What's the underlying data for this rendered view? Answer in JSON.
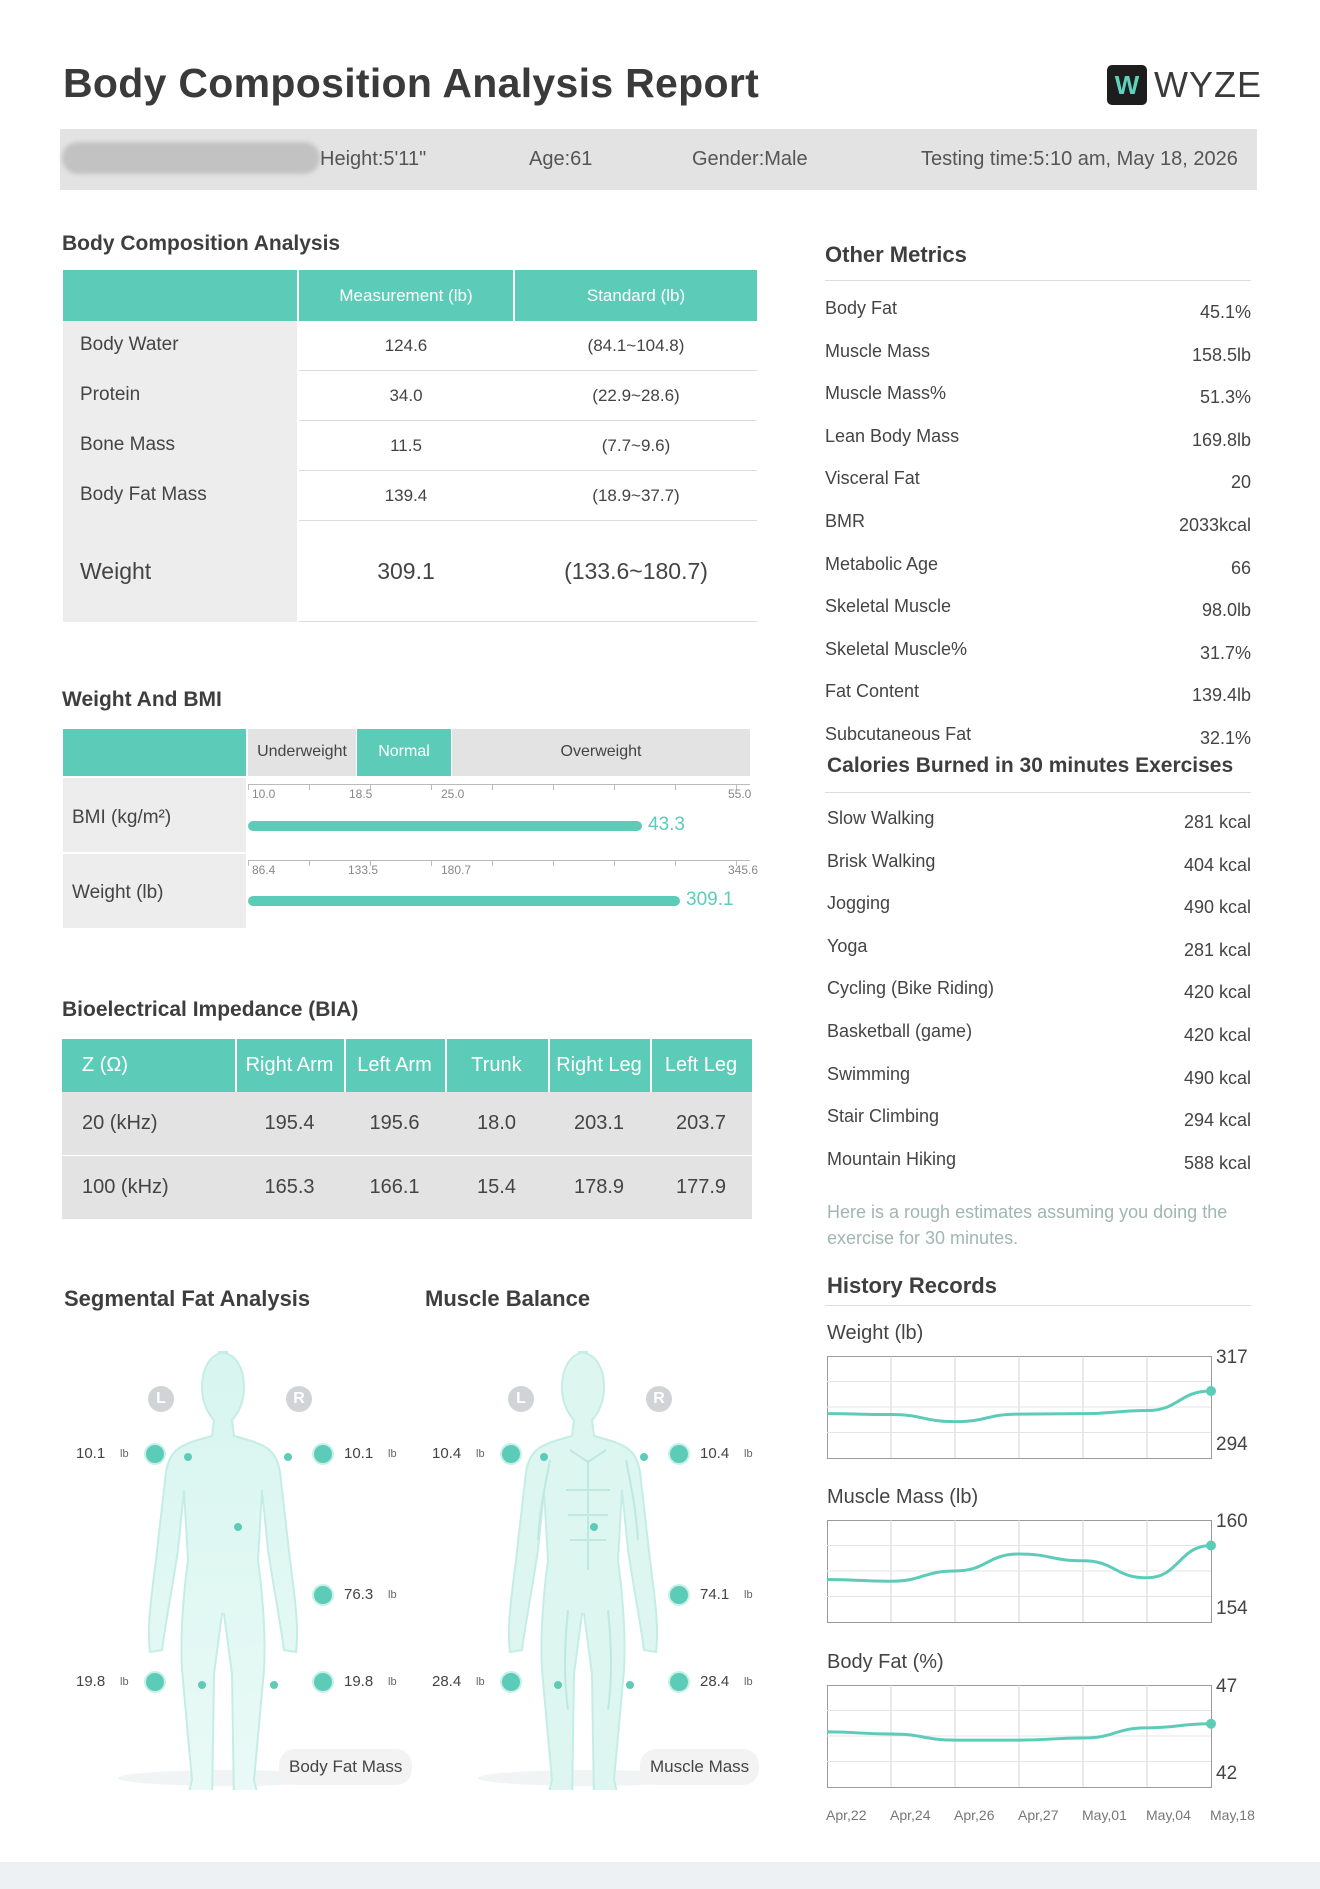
{
  "header": {
    "title": "Body Composition Analysis Report",
    "logo_text": "WYZE",
    "logo_mark": "W"
  },
  "info": {
    "height": "Height:5'11\"",
    "age": "Age:61",
    "gender": "Gender:Male",
    "testing_time": "Testing time:5:10 am, May 18, 2026"
  },
  "bca": {
    "title": "Body Composition Analysis",
    "col_measure": "Measurement (lb)",
    "col_standard": "Standard (lb)",
    "rows": [
      {
        "label": "Body Water",
        "value": "124.6",
        "standard": "(84.1~104.8)"
      },
      {
        "label": "Protein",
        "value": "34.0",
        "standard": "(22.9~28.6)"
      },
      {
        "label": "Bone Mass",
        "value": "11.5",
        "standard": "(7.7~9.6)"
      },
      {
        "label": "Body Fat Mass",
        "value": "139.4",
        "standard": "(18.9~37.7)"
      }
    ],
    "weight": {
      "label": "Weight",
      "value": "309.1",
      "standard": "(133.6~180.7)"
    }
  },
  "bmi": {
    "title": "Weight And BMI",
    "bands": [
      "Underweight",
      "Normal",
      "Overweight"
    ],
    "bmi_label": "BMI (kg/m²)",
    "bmi_ticks": [
      "10.0",
      "18.5",
      "25.0",
      "55.0"
    ],
    "bmi_value": "43.3",
    "bmi_fraction": 0.785,
    "weight_label": "Weight (lb)",
    "weight_ticks": [
      "86.4",
      "133.5",
      "180.7",
      "345.6"
    ],
    "weight_value": "309.1",
    "weight_fraction": 0.86
  },
  "bia": {
    "title": "Bioelectrical Impedance (BIA)",
    "headers": [
      "Z (Ω)",
      "Right Arm",
      "Left Arm",
      "Trunk",
      "Right Leg",
      "Left Leg"
    ],
    "rows": [
      [
        "20 (kHz)",
        "195.4",
        "195.6",
        "18.0",
        "203.1",
        "203.7"
      ],
      [
        "100 (kHz)",
        "165.3",
        "166.1",
        "15.4",
        "178.9",
        "177.9"
      ]
    ]
  },
  "segmental": {
    "title": "Segmental Fat Analysis",
    "left_arm": "10.1",
    "right_arm": "10.1",
    "trunk": "76.3",
    "left_leg": "19.8",
    "right_leg": "19.8",
    "unit": "lb",
    "l": "L",
    "r": "R",
    "caption": "Body Fat Mass"
  },
  "muscle": {
    "title": "Muscle Balance",
    "left_arm": "10.4",
    "right_arm": "10.4",
    "trunk": "74.1",
    "left_leg": "28.4",
    "right_leg": "28.4",
    "unit": "lb",
    "l": "L",
    "r": "R",
    "caption": "Muscle Mass"
  },
  "other": {
    "title": "Other Metrics",
    "rows": [
      {
        "label": "Body Fat",
        "value": "45.1%"
      },
      {
        "label": "Muscle Mass",
        "value": "158.5lb"
      },
      {
        "label": "Muscle Mass%",
        "value": "51.3%"
      },
      {
        "label": "Lean Body Mass",
        "value": "169.8lb"
      },
      {
        "label": "Visceral Fat",
        "value": "20"
      },
      {
        "label": "BMR",
        "value": "2033kcal"
      },
      {
        "label": "Metabolic Age",
        "value": "66"
      },
      {
        "label": "Skeletal Muscle",
        "value": "98.0lb"
      },
      {
        "label": "Skeletal Muscle%",
        "value": "31.7%"
      },
      {
        "label": "Fat Content",
        "value": "139.4lb"
      },
      {
        "label": "Subcutaneous Fat",
        "value": "32.1%"
      }
    ]
  },
  "calories": {
    "title": "Calories Burned in 30 minutes Exercises",
    "rows": [
      {
        "label": "Slow Walking",
        "value": "281 kcal"
      },
      {
        "label": "Brisk Walking",
        "value": "404 kcal"
      },
      {
        "label": "Jogging",
        "value": "490 kcal"
      },
      {
        "label": "Yoga",
        "value": "281 kcal"
      },
      {
        "label": "Cycling (Bike Riding)",
        "value": "420 kcal"
      },
      {
        "label": "Basketball (game)",
        "value": "420 kcal"
      },
      {
        "label": "Swimming",
        "value": "490 kcal"
      },
      {
        "label": "Stair Climbing",
        "value": "294 kcal"
      },
      {
        "label": "Mountain Hiking",
        "value": "588 kcal"
      }
    ],
    "note": "Here is a rough estimates assuming you doing the exercise for 30 minutes."
  },
  "history": {
    "title": "History Records",
    "x_labels": [
      "Apr,22",
      "Apr,24",
      "Apr,26",
      "Apr,27",
      "May,01",
      "May,04",
      "May,18"
    ]
  },
  "chart_data": [
    {
      "type": "line",
      "title": "Weight (lb)",
      "x": [
        "Apr,22",
        "Apr,24",
        "Apr,26",
        "Apr,27",
        "May,01",
        "May,04",
        "May,18"
      ],
      "y_ticks": [
        "317",
        "294"
      ],
      "ylim": [
        294,
        317
      ],
      "series": [
        {
          "values": [
            304.0,
            303.8,
            302.2,
            303.9,
            304.0,
            304.7,
            309.1
          ]
        }
      ]
    },
    {
      "type": "line",
      "title": "Muscle Mass (lb)",
      "x": [
        "Apr,22",
        "Apr,24",
        "Apr,26",
        "Apr,27",
        "May,01",
        "May,04",
        "May,18"
      ],
      "y_ticks": [
        "160",
        "154"
      ],
      "ylim": [
        154,
        160
      ],
      "series": [
        {
          "values": [
            156.5,
            156.4,
            157.0,
            158.0,
            157.6,
            156.6,
            158.5
          ]
        }
      ]
    },
    {
      "type": "line",
      "title": "Body Fat (%)",
      "x": [
        "Apr,22",
        "Apr,24",
        "Apr,26",
        "Apr,27",
        "May,01",
        "May,04",
        "May,18"
      ],
      "y_ticks": [
        "47",
        "42"
      ],
      "ylim": [
        42,
        47
      ],
      "series": [
        {
          "values": [
            44.7,
            44.6,
            44.3,
            44.3,
            44.4,
            44.9,
            45.1
          ]
        }
      ]
    }
  ],
  "colors": {
    "accent": "#5cccb9",
    "band_gray": "#e3e3e3"
  }
}
